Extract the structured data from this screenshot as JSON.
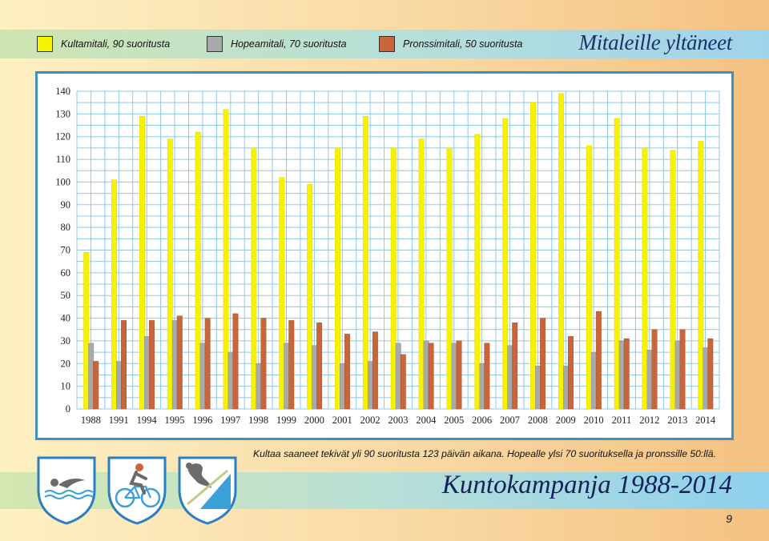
{
  "legend": {
    "gold": {
      "label": "Kultamitali, 90 suoritusta",
      "color": "#f7f300"
    },
    "silver": {
      "label": "Hopeamitali, 70 suoritusta",
      "color": "#a8a9ab"
    },
    "bronze": {
      "label": "Pronssimitali, 50 suoritusta",
      "color": "#c8653a"
    }
  },
  "title": "Mitaleille yltäneet",
  "caption": "Kultaa saaneet tekivät yli 90 suoritusta 123 päivän aikana. Hopealle ylsi 70 suorituksella ja pronssille 50:llä.",
  "campaign_title": "Kuntokampanja 1988-2014",
  "page_number": "9",
  "icons": [
    "swimming-icon",
    "cycling-icon",
    "skiing-icon"
  ],
  "chart_data": {
    "type": "bar",
    "categories": [
      "1988",
      "1991",
      "1994",
      "1995",
      "1996",
      "1997",
      "1998",
      "1999",
      "2000",
      "2001",
      "2002",
      "2003",
      "2004",
      "2005",
      "2006",
      "2007",
      "2008",
      "2009",
      "2010",
      "2011",
      "2012",
      "2013",
      "2014"
    ],
    "series": [
      {
        "name": "Kultamitali, 90 suoritusta",
        "color": "#f7f300",
        "values": [
          69,
          101,
          129,
          119,
          122,
          132,
          115,
          102,
          99,
          115,
          129,
          115,
          119,
          115,
          121,
          128,
          135,
          139,
          116,
          128,
          115,
          114,
          118
        ]
      },
      {
        "name": "Hopeamitali, 70 suoritusta",
        "color": "#a8a9ab",
        "values": [
          29,
          21,
          32,
          39,
          29,
          25,
          20,
          29,
          28,
          20,
          21,
          29,
          30,
          29,
          20,
          28,
          19,
          19,
          25,
          30,
          26,
          30,
          27
        ]
      },
      {
        "name": "Pronssimitali, 50 suoritusta",
        "color": "#c8653a",
        "values": [
          21,
          39,
          39,
          41,
          40,
          42,
          40,
          39,
          38,
          33,
          34,
          24,
          29,
          30,
          29,
          38,
          40,
          32,
          43,
          31,
          35,
          35,
          31
        ]
      }
    ],
    "yticks": [
      0,
      10,
      20,
      30,
      40,
      50,
      60,
      70,
      80,
      90,
      100,
      110,
      120,
      130,
      140
    ],
    "ylim": [
      0,
      140
    ],
    "grid": true
  }
}
